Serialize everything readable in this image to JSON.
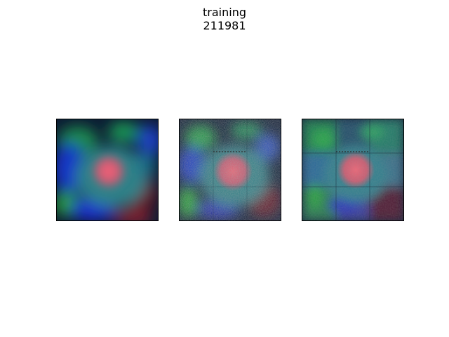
{
  "title": {
    "line1": "training",
    "line2": "211981"
  },
  "panels": [
    {
      "name": "image-panel-1",
      "style": "smooth"
    },
    {
      "name": "image-panel-2",
      "style": "noisy"
    },
    {
      "name": "image-panel-3",
      "style": "blocky"
    }
  ],
  "colors": {
    "background": "#ffffff",
    "frame": "#000000",
    "center_glow": "#f05a6e",
    "teal": "#2f8a8a",
    "green": "#27b64c",
    "blue": "#1434d0",
    "dark_red": "#6e1420",
    "dark_base": "#0c1830"
  }
}
